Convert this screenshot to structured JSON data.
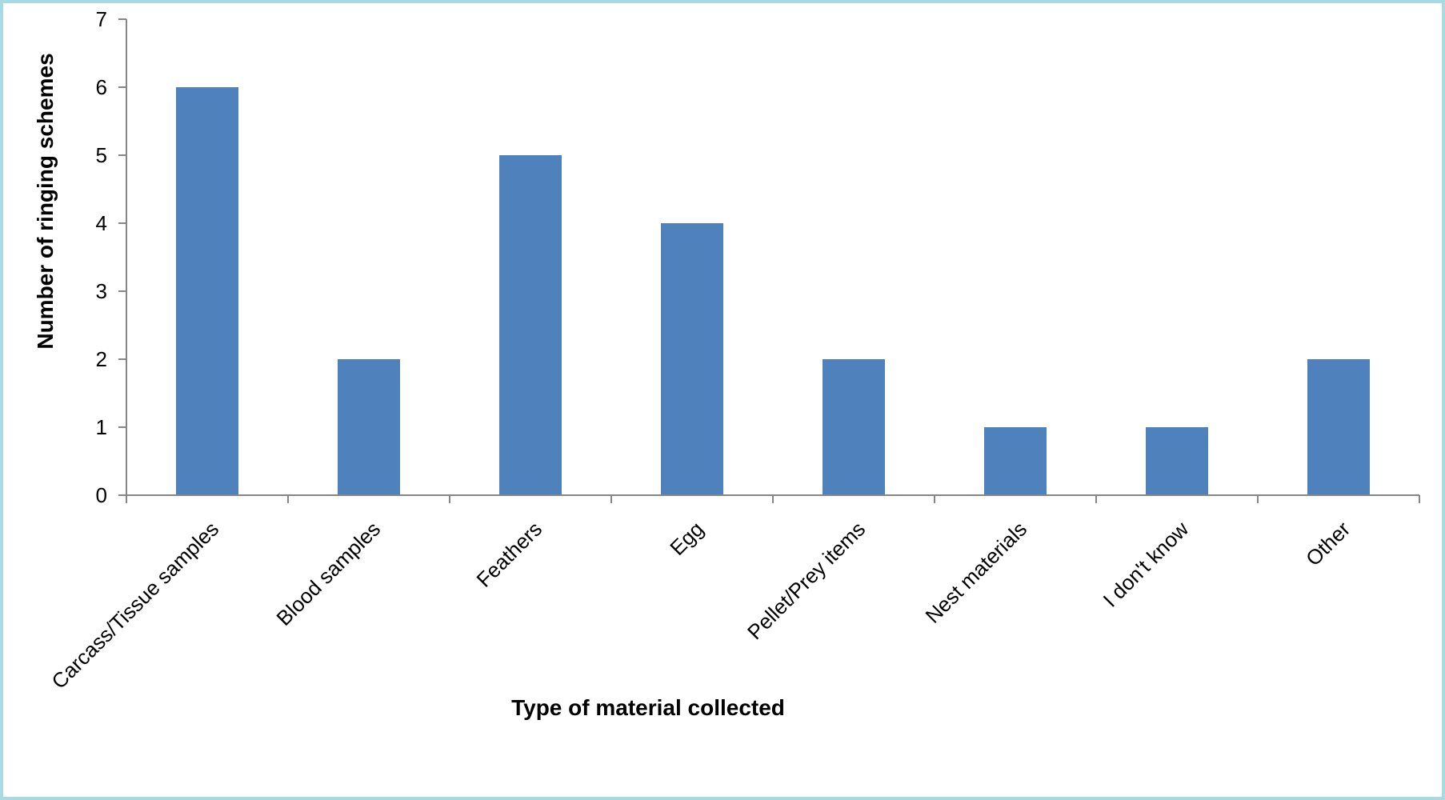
{
  "chart_data": {
    "type": "bar",
    "title": "",
    "xlabel": "Type of material collected",
    "ylabel": "Number of ringing schemes",
    "categories": [
      "Carcass/Tissue samples",
      "Blood samples",
      "Feathers",
      "Egg",
      "Pellet/Prey items",
      "Nest materials",
      "I don't know",
      "Other"
    ],
    "values": [
      6,
      2,
      5,
      4,
      2,
      1,
      1,
      2
    ],
    "ylim": [
      0,
      7
    ],
    "yticks": [
      0,
      1,
      2,
      3,
      4,
      5,
      6,
      7
    ],
    "grid": false,
    "legend": "none",
    "bar_color": "#4f81bd",
    "axis_color": "#868686"
  }
}
